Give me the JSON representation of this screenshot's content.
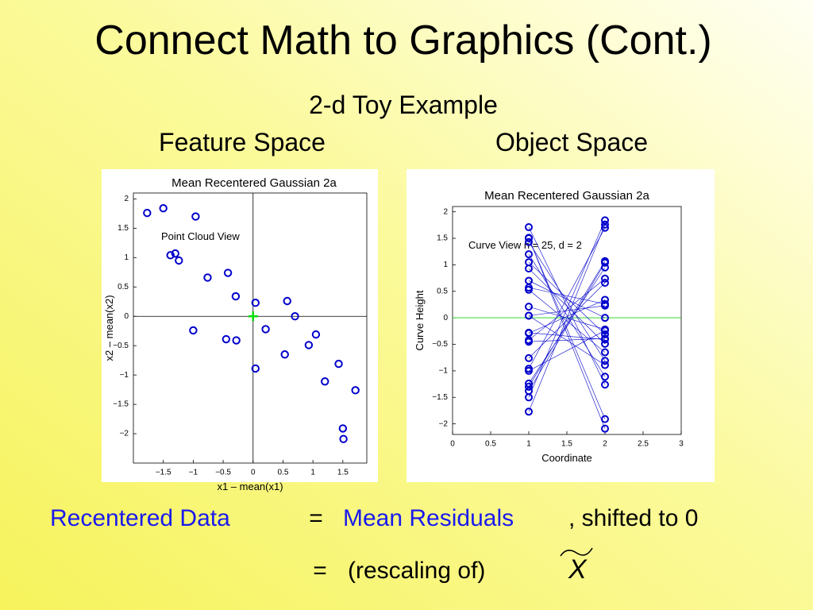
{
  "slide": {
    "title": "Connect Math to Graphics (Cont.)",
    "subtitle": "2-d Toy Example",
    "panel_titles": [
      "Feature Space",
      "Object Space"
    ],
    "equation1": {
      "lhs": "Recentered Data",
      "eq": "=",
      "rhs": "Mean Residuals",
      "rest": ", shifted to 0"
    },
    "equation2": {
      "eq": "=",
      "text": "(rescaling of)",
      "symbol": "X"
    }
  },
  "chart_data": [
    {
      "type": "scatter",
      "title": "Mean Recentered Gaussian 2a",
      "annotation": "Point Cloud View",
      "xlabel": "x1 – mean(x1)",
      "ylabel": "x2 – mean(x2)",
      "xlim": [
        -2,
        1.9
      ],
      "ylim": [
        -2.5,
        2.1
      ],
      "zero_lines": true,
      "xticks": [
        {
          "value": -1.5,
          "label": "−1.5"
        },
        {
          "value": -1,
          "label": "−1"
        },
        {
          "value": -0.5,
          "label": "−0.5"
        },
        0,
        0.5,
        1,
        1.5
      ],
      "yticks": [
        {
          "value": -2,
          "label": "−2"
        },
        {
          "value": -1.5,
          "label": "−1.5"
        },
        {
          "value": -1,
          "label": "−1"
        },
        {
          "value": -0.5,
          "label": "−0.5"
        },
        0,
        0.5,
        1,
        1.5,
        2
      ],
      "series": [
        {
          "color": "#0000cc",
          "marker": "circle",
          "x": [
            -1.77,
            -1.5,
            -0.96,
            -1.38,
            -1.3,
            -1.24,
            -0.76,
            -0.42,
            -0.29,
            -1.0,
            -0.45,
            -0.28,
            0.04,
            0.21,
            0.04,
            0.57,
            0.7,
            0.53,
            0.93,
            1.05,
            1.2,
            1.43,
            1.71,
            1.5,
            1.51
          ],
          "values": [
            1.76,
            1.84,
            1.7,
            1.04,
            1.07,
            0.95,
            0.66,
            0.74,
            0.34,
            -0.24,
            -0.39,
            -0.41,
            0.23,
            -0.22,
            -0.89,
            0.26,
            0.0,
            -0.65,
            -0.49,
            -0.31,
            -1.11,
            -0.81,
            -1.26,
            -1.91,
            -2.09
          ]
        },
        {
          "color": "#00dd00",
          "marker": "plus",
          "x": [
            0
          ],
          "values": [
            0
          ]
        }
      ]
    },
    {
      "type": "line",
      "title": "Mean Recentered Gaussian 2a",
      "annotation": "Curve View n = 25, d = 2",
      "xlabel": "Coordinate",
      "ylabel": "Curve Height",
      "xlim": [
        0,
        3
      ],
      "ylim": [
        -2.2,
        2.1
      ],
      "color": "#0000cc",
      "hline": 0,
      "hline_color": "#33dd33",
      "xticks": [
        0,
        0.5,
        1,
        1.5,
        2,
        2.5,
        3
      ],
      "yticks": [
        {
          "value": -2,
          "label": "−2"
        },
        {
          "value": -1.5,
          "label": "−1.5"
        },
        {
          "value": -1,
          "label": "−1"
        },
        {
          "value": -0.5,
          "label": "−0.5"
        },
        0,
        0.5,
        1,
        1.5,
        2
      ],
      "x": [
        1,
        2
      ],
      "series": [
        {
          "values": [
            -1.77,
            1.76
          ]
        },
        {
          "values": [
            -1.5,
            1.84
          ]
        },
        {
          "values": [
            -0.96,
            1.7
          ]
        },
        {
          "values": [
            -1.38,
            1.04
          ]
        },
        {
          "values": [
            -1.3,
            1.07
          ]
        },
        {
          "values": [
            -1.24,
            0.95
          ]
        },
        {
          "values": [
            -0.76,
            0.66
          ]
        },
        {
          "values": [
            -0.42,
            0.74
          ]
        },
        {
          "values": [
            -0.29,
            0.34
          ]
        },
        {
          "values": [
            -1.0,
            -0.24
          ]
        },
        {
          "values": [
            -0.45,
            -0.39
          ]
        },
        {
          "values": [
            -0.28,
            -0.41
          ]
        },
        {
          "values": [
            0.04,
            0.23
          ]
        },
        {
          "values": [
            0.21,
            -0.22
          ]
        },
        {
          "values": [
            0.04,
            -0.89
          ]
        },
        {
          "values": [
            0.57,
            0.26
          ]
        },
        {
          "values": [
            0.7,
            0.0
          ]
        },
        {
          "values": [
            0.53,
            -0.65
          ]
        },
        {
          "values": [
            0.93,
            -0.49
          ]
        },
        {
          "values": [
            1.05,
            -0.31
          ]
        },
        {
          "values": [
            1.2,
            -1.11
          ]
        },
        {
          "values": [
            1.43,
            -0.81
          ]
        },
        {
          "values": [
            1.71,
            -1.26
          ]
        },
        {
          "values": [
            1.5,
            -1.91
          ]
        },
        {
          "values": [
            1.51,
            -2.09
          ]
        }
      ]
    }
  ]
}
